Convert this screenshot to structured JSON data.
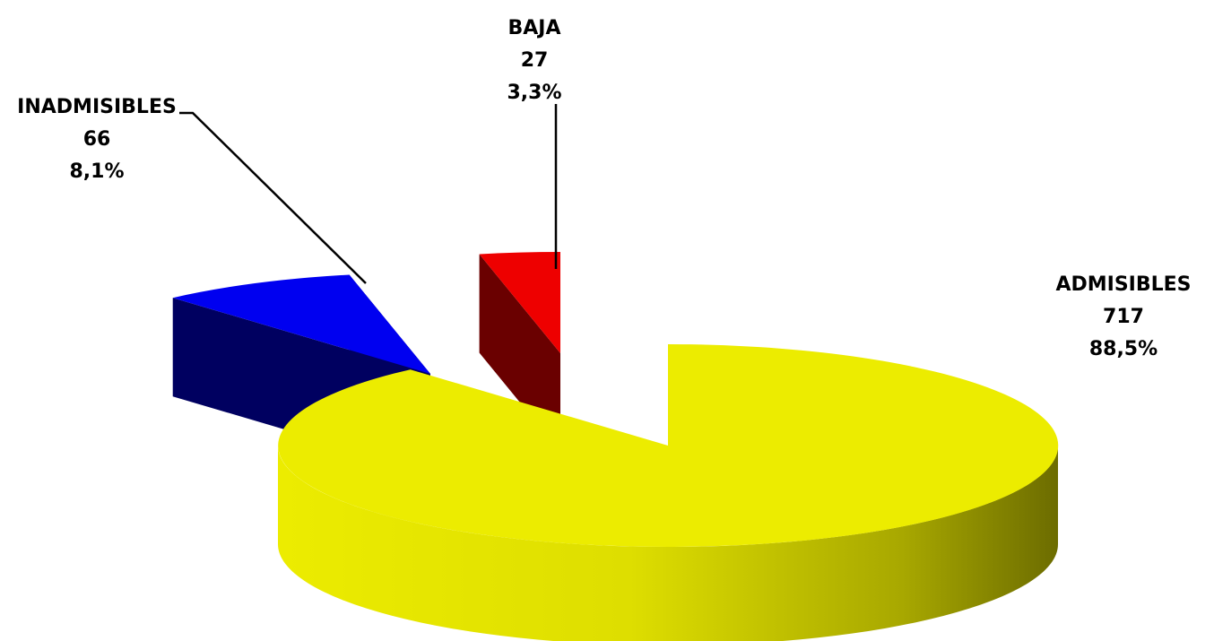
{
  "chart_data": {
    "type": "pie",
    "style": "3d-exploded",
    "title": "",
    "slices": [
      {
        "name": "ADMISIBLES",
        "value": 717,
        "percent": "88,5%",
        "value_label": "717",
        "color": "#ECEC00",
        "side_color": "#8A8A00"
      },
      {
        "name": "INADMISIBLES",
        "value": 66,
        "percent": "8,1%",
        "value_label": "66",
        "color": "#0000F0",
        "side_color": "#000060"
      },
      {
        "name": "BAJA",
        "value": 27,
        "percent": "3,3%",
        "value_label": "27",
        "color": "#EE0000",
        "side_color": "#6A0000"
      }
    ]
  }
}
